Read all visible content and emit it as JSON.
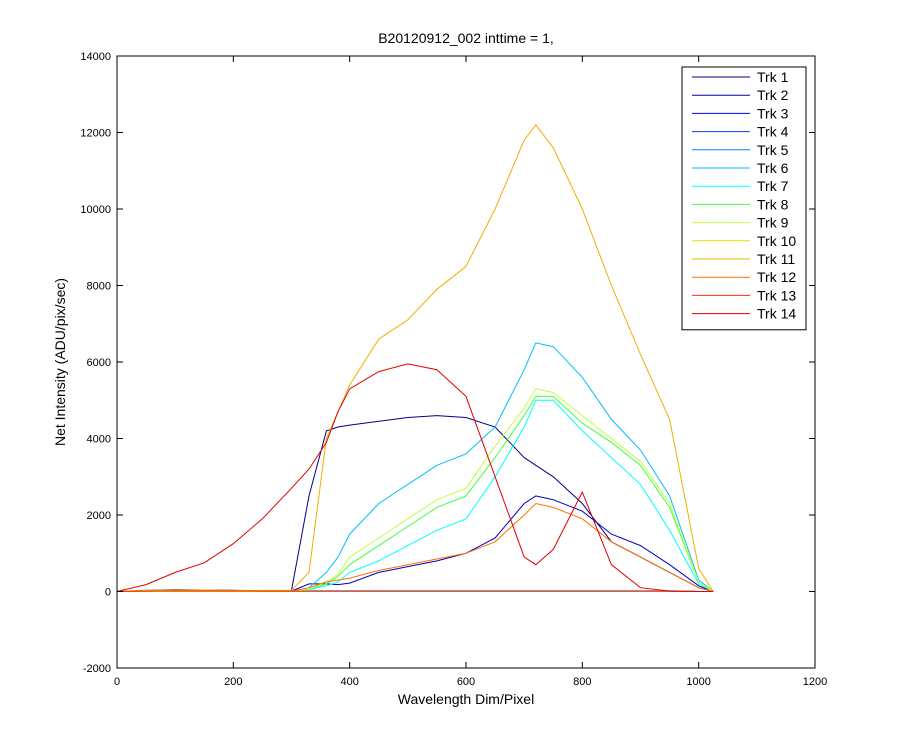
{
  "chart_data": {
    "type": "line",
    "title": "B20120912_002 inttime = 1,",
    "xlabel": "Wavelength Dim/Pixel",
    "ylabel": "Net Intensity (ADU/pix/sec)",
    "xlim": [
      0,
      1200
    ],
    "ylim": [
      -2000,
      14000
    ],
    "xticks": [
      0,
      200,
      400,
      600,
      800,
      1000,
      1200
    ],
    "yticks": [
      -2000,
      0,
      2000,
      4000,
      6000,
      8000,
      10000,
      12000,
      14000
    ],
    "grid": false,
    "legend_position": "top-right",
    "x": [
      0,
      50,
      100,
      150,
      200,
      250,
      300,
      330,
      360,
      380,
      400,
      450,
      500,
      550,
      600,
      650,
      700,
      720,
      750,
      800,
      850,
      900,
      950,
      1000,
      1025
    ],
    "series": [
      {
        "name": "Trk 1",
        "color": "#00008F",
        "values": [
          0,
          30,
          50,
          40,
          30,
          20,
          30,
          2500,
          4200,
          4300,
          4350,
          4450,
          4550,
          4600,
          4550,
          4300,
          3500,
          3300,
          3000,
          2300,
          1300,
          900,
          500,
          100,
          0
        ]
      },
      {
        "name": "Trk 2",
        "color": "#0000BF",
        "values": [
          0,
          20,
          40,
          40,
          30,
          20,
          10,
          200,
          200,
          180,
          220,
          500,
          650,
          800,
          1000,
          1400,
          2300,
          2500,
          2400,
          2100,
          1500,
          1200,
          700,
          150,
          0
        ]
      },
      {
        "name": "Trk 3",
        "color": "#0000FF",
        "values": [
          0,
          20,
          30,
          30,
          20,
          10,
          10,
          10,
          10,
          10,
          10,
          10,
          10,
          10,
          10,
          10,
          10,
          10,
          10,
          10,
          10,
          10,
          10,
          0,
          0
        ]
      },
      {
        "name": "Trk 4",
        "color": "#0040FF",
        "values": [
          0,
          10,
          20,
          20,
          20,
          10,
          10,
          10,
          10,
          10,
          10,
          10,
          10,
          10,
          10,
          10,
          10,
          10,
          10,
          10,
          10,
          10,
          10,
          0,
          0
        ]
      },
      {
        "name": "Trk 5",
        "color": "#0080FF",
        "values": [
          0,
          10,
          20,
          20,
          20,
          10,
          10,
          20,
          20,
          20,
          20,
          20,
          20,
          20,
          20,
          20,
          20,
          20,
          20,
          20,
          20,
          20,
          20,
          0,
          0
        ]
      },
      {
        "name": "Trk 6",
        "color": "#00BFFF",
        "values": [
          0,
          10,
          20,
          20,
          10,
          10,
          10,
          100,
          500,
          900,
          1500,
          2300,
          2800,
          3300,
          3600,
          4300,
          5800,
          6500,
          6400,
          5600,
          4500,
          3700,
          2500,
          300,
          0
        ]
      },
      {
        "name": "Trk 7",
        "color": "#00FFFF",
        "values": [
          0,
          10,
          10,
          10,
          10,
          10,
          10,
          50,
          150,
          250,
          500,
          800,
          1200,
          1600,
          1900,
          3000,
          4300,
          5000,
          5000,
          4200,
          3500,
          2800,
          1600,
          200,
          0
        ]
      },
      {
        "name": "Trk 8",
        "color": "#40FF40",
        "values": [
          0,
          10,
          10,
          10,
          10,
          10,
          10,
          60,
          200,
          400,
          700,
          1200,
          1700,
          2200,
          2500,
          3500,
          4600,
          5100,
          5100,
          4400,
          3900,
          3300,
          2200,
          250,
          0
        ]
      },
      {
        "name": "Trk 9",
        "color": "#BFFF40",
        "values": [
          0,
          10,
          10,
          10,
          10,
          10,
          10,
          60,
          250,
          450,
          900,
          1400,
          1900,
          2400,
          2700,
          3800,
          4800,
          5300,
          5200,
          4600,
          4000,
          3400,
          2300,
          250,
          0
        ]
      },
      {
        "name": "Trk 10",
        "color": "#E0E000",
        "values": [
          0,
          10,
          10,
          10,
          10,
          10,
          10,
          10,
          10,
          10,
          10,
          10,
          10,
          10,
          10,
          10,
          10,
          10,
          10,
          10,
          10,
          10,
          10,
          0,
          0
        ]
      },
      {
        "name": "Trk 11",
        "color": "#F0B000",
        "values": [
          0,
          30,
          40,
          40,
          30,
          30,
          30,
          500,
          4000,
          4700,
          5400,
          6600,
          7100,
          7900,
          8500,
          10000,
          11800,
          12200,
          11600,
          10000,
          8000,
          6200,
          4500,
          600,
          0
        ]
      },
      {
        "name": "Trk 12",
        "color": "#FF7000",
        "values": [
          0,
          10,
          20,
          20,
          20,
          10,
          10,
          100,
          250,
          300,
          350,
          550,
          700,
          850,
          1000,
          1300,
          2000,
          2300,
          2200,
          1900,
          1300,
          900,
          500,
          100,
          0
        ]
      },
      {
        "name": "Trk 13",
        "color": "#FF3000",
        "values": [
          0,
          10,
          10,
          10,
          10,
          10,
          10,
          10,
          10,
          10,
          10,
          10,
          10,
          10,
          10,
          10,
          10,
          10,
          10,
          10,
          10,
          10,
          10,
          0,
          0
        ]
      },
      {
        "name": "Trk 14",
        "color": "#E00000",
        "values": [
          0,
          180,
          500,
          750,
          1250,
          1900,
          2700,
          3200,
          3900,
          4700,
          5300,
          5750,
          5950,
          5800,
          5100,
          3000,
          900,
          700,
          1100,
          2600,
          700,
          100,
          10,
          0,
          0
        ]
      }
    ]
  }
}
